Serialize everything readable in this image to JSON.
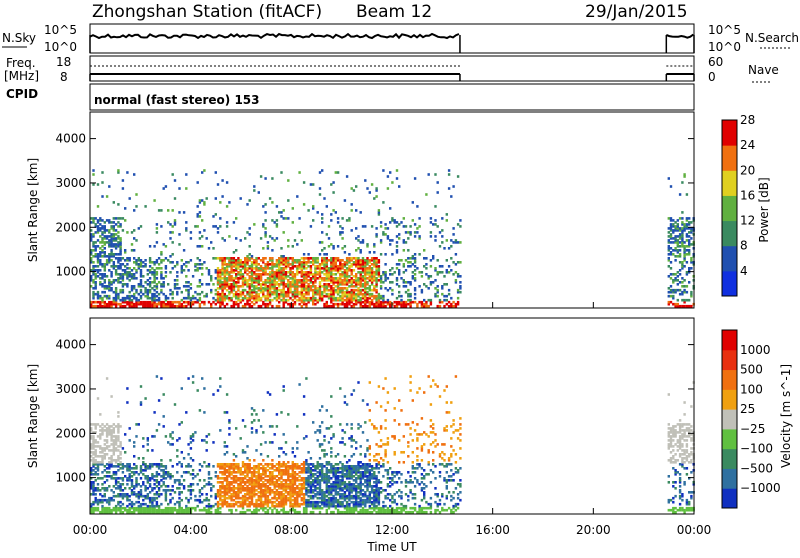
{
  "header": {
    "station": "Zhongshan Station (fitACF)",
    "beam": "Beam 12",
    "date": "29/Jan/2015",
    "cpid_label": "CPID",
    "cpid_value": "normal (fast stereo) 153"
  },
  "noise_panel": {
    "left_label": "N.Sky",
    "right_label": "N.Search",
    "left_ticks": [
      "10^5",
      "10^0"
    ],
    "right_ticks": [
      "10^5",
      "10^0"
    ]
  },
  "freq_panel": {
    "left_label_1": "Freq.",
    "left_label_2": "[MHz]",
    "left_ticks": [
      "18",
      "8"
    ],
    "right_label": "Nave",
    "right_ticks": [
      "60",
      "0"
    ]
  },
  "chart_data": [
    {
      "type": "heatmap",
      "name": "power",
      "ylabel": "Slant Range [km]",
      "xlabel": "",
      "ylim": [
        180,
        4600
      ],
      "yticks": [
        1000,
        2000,
        3000,
        4000
      ],
      "x_range_hours": [
        0,
        24
      ],
      "colorbar_label": "Power [dB]",
      "colorbar_ticks": [
        "4",
        "8",
        "12",
        "16",
        "20",
        "24",
        "28"
      ],
      "colorbar_colors": [
        "#1030e0",
        "#2050b0",
        "#3a8a60",
        "#60b040",
        "#e0d020",
        "#f07010",
        "#e00000"
      ],
      "data_coverage_hours": [
        [
          0,
          14.7
        ],
        [
          22.9,
          24
        ]
      ]
    },
    {
      "type": "heatmap",
      "name": "velocity",
      "ylabel": "Slant Range [km]",
      "xlabel": "Time UT",
      "ylim": [
        180,
        4600
      ],
      "yticks": [
        1000,
        2000,
        3000,
        4000
      ],
      "x_range_hours": [
        0,
        24
      ],
      "xticks": [
        "00:00",
        "04:00",
        "08:00",
        "12:00",
        "16:00",
        "20:00",
        "00:00"
      ],
      "colorbar_label": "Velocity [m s^-1]",
      "colorbar_ticks": [
        "1000",
        "500",
        "100",
        "25",
        "−25",
        "−100",
        "−500",
        "−1000"
      ],
      "colorbar_colors": [
        "#1030c0",
        "#2f70a0",
        "#3a8a60",
        "#60c040",
        "#c0c0b8",
        "#f0a010",
        "#f07010",
        "#e83010",
        "#e00000"
      ],
      "data_coverage_hours": [
        [
          0,
          14.7
        ],
        [
          22.9,
          24
        ]
      ]
    }
  ],
  "colors": {
    "power_high": "#e00000",
    "power_mid": "#f07010",
    "velocity_positive": "#2f70a0",
    "velocity_negative": "#f07010",
    "ground_scatter": "#c0c0b8"
  }
}
